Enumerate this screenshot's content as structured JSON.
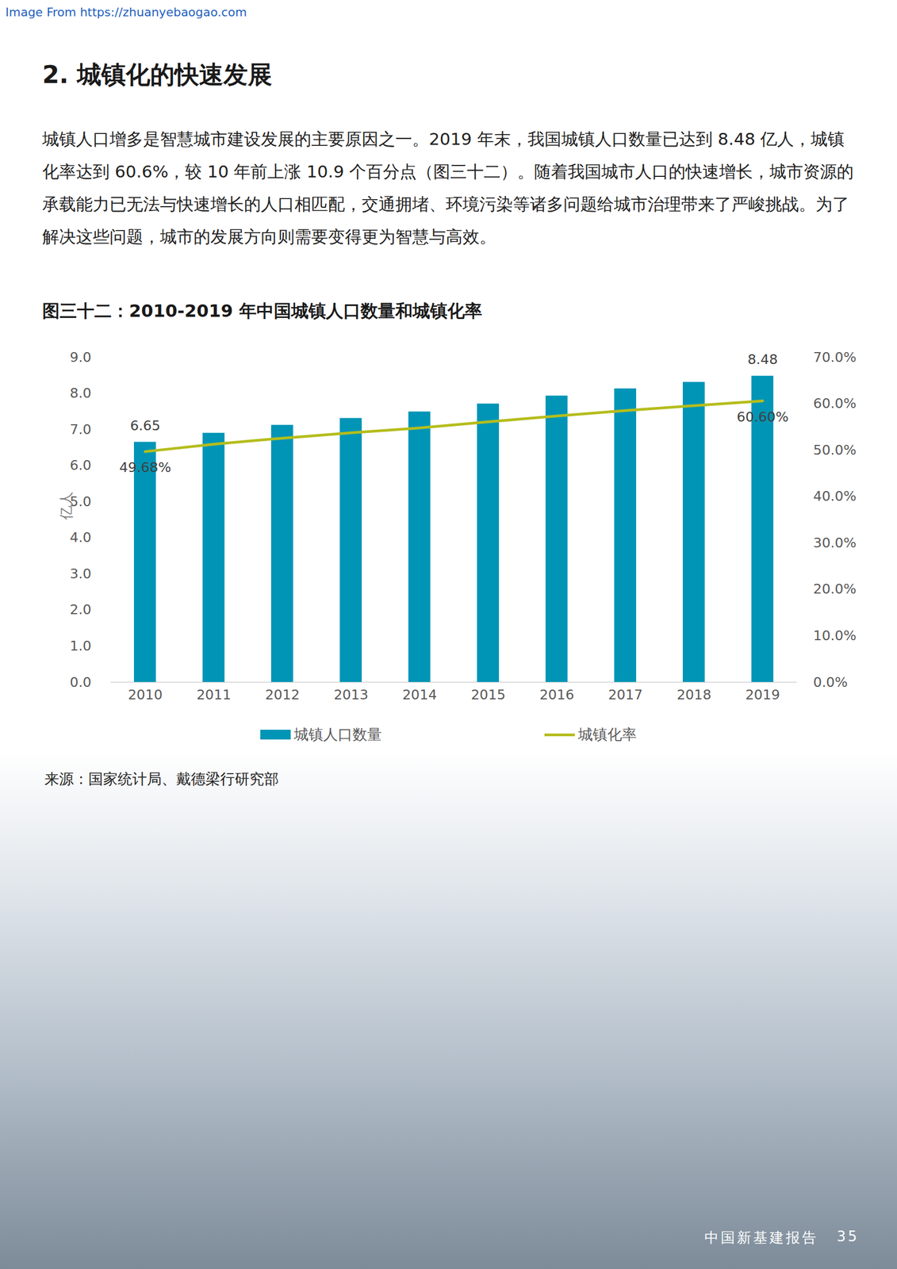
{
  "page": {
    "note": "Image From https://zhuanyebaogao.com",
    "heading": "2. 城镇化的快速发展",
    "paragraph": "城镇人口增多是智慧城市建设发展的主要原因之一。2019 年末，我国城镇人口数量已达到 8.48 亿人，城镇化率达到 60.6%，较 10 年前上涨 10.9 个百分点（图三十二）。随着我国城市人口的快速增长，城市资源的承载能力已无法与快速增长的人口相匹配，交通拥堵、环境污染等诸多问题给城市治理带来了严峻挑战。为了解决这些问题，城市的发展方向则需要变得更为智慧与高效。",
    "source": "来源：国家统计局、戴德梁行研究部",
    "footer": "中国新基建报告",
    "page_number": 35
  },
  "chart_data": {
    "type": "bar",
    "title": "图三十二：2010-2019 年中国城镇人口数量和城镇化率",
    "y_label": "亿人",
    "categories": [
      "2010",
      "2011",
      "2012",
      "2013",
      "2014",
      "2015",
      "2016",
      "2017",
      "2018",
      "2019"
    ],
    "series": [
      {
        "name": "城镇人口数量",
        "type": "bar",
        "color": "#0095b6",
        "values": [
          6.65,
          6.9,
          7.12,
          7.31,
          7.49,
          7.71,
          7.93,
          8.13,
          8.31,
          8.48
        ],
        "value_labels": [
          "6.65",
          null,
          null,
          null,
          null,
          null,
          null,
          null,
          null,
          "8.48"
        ]
      },
      {
        "name": "城镇化率",
        "type": "line",
        "axis": "y2",
        "color": "#b5bd1c",
        "values": [
          49.68,
          51.27,
          52.57,
          53.73,
          54.77,
          56.1,
          57.35,
          58.52,
          59.58,
          60.6
        ],
        "value_labels": [
          "49.68%",
          null,
          null,
          null,
          null,
          null,
          null,
          null,
          null,
          "60.60%"
        ]
      }
    ],
    "ylim": [
      0,
      9
    ],
    "yticks": [
      0,
      1,
      2,
      3,
      4,
      5,
      6,
      7,
      8,
      9
    ],
    "y2lim": [
      0,
      70
    ],
    "y2ticks": [
      {
        "value": 0,
        "label": "0.0%"
      },
      {
        "value": 10,
        "label": "10.0%"
      },
      {
        "value": 20,
        "label": "20.0%"
      },
      {
        "value": 30,
        "label": "30.0%"
      },
      {
        "value": 40,
        "label": "40.0%"
      },
      {
        "value": 50,
        "label": "50.0%"
      },
      {
        "value": 60,
        "label": "60.0%"
      },
      {
        "value": 70,
        "label": "70.0%"
      }
    ],
    "grid": false,
    "legend": "bottom"
  }
}
